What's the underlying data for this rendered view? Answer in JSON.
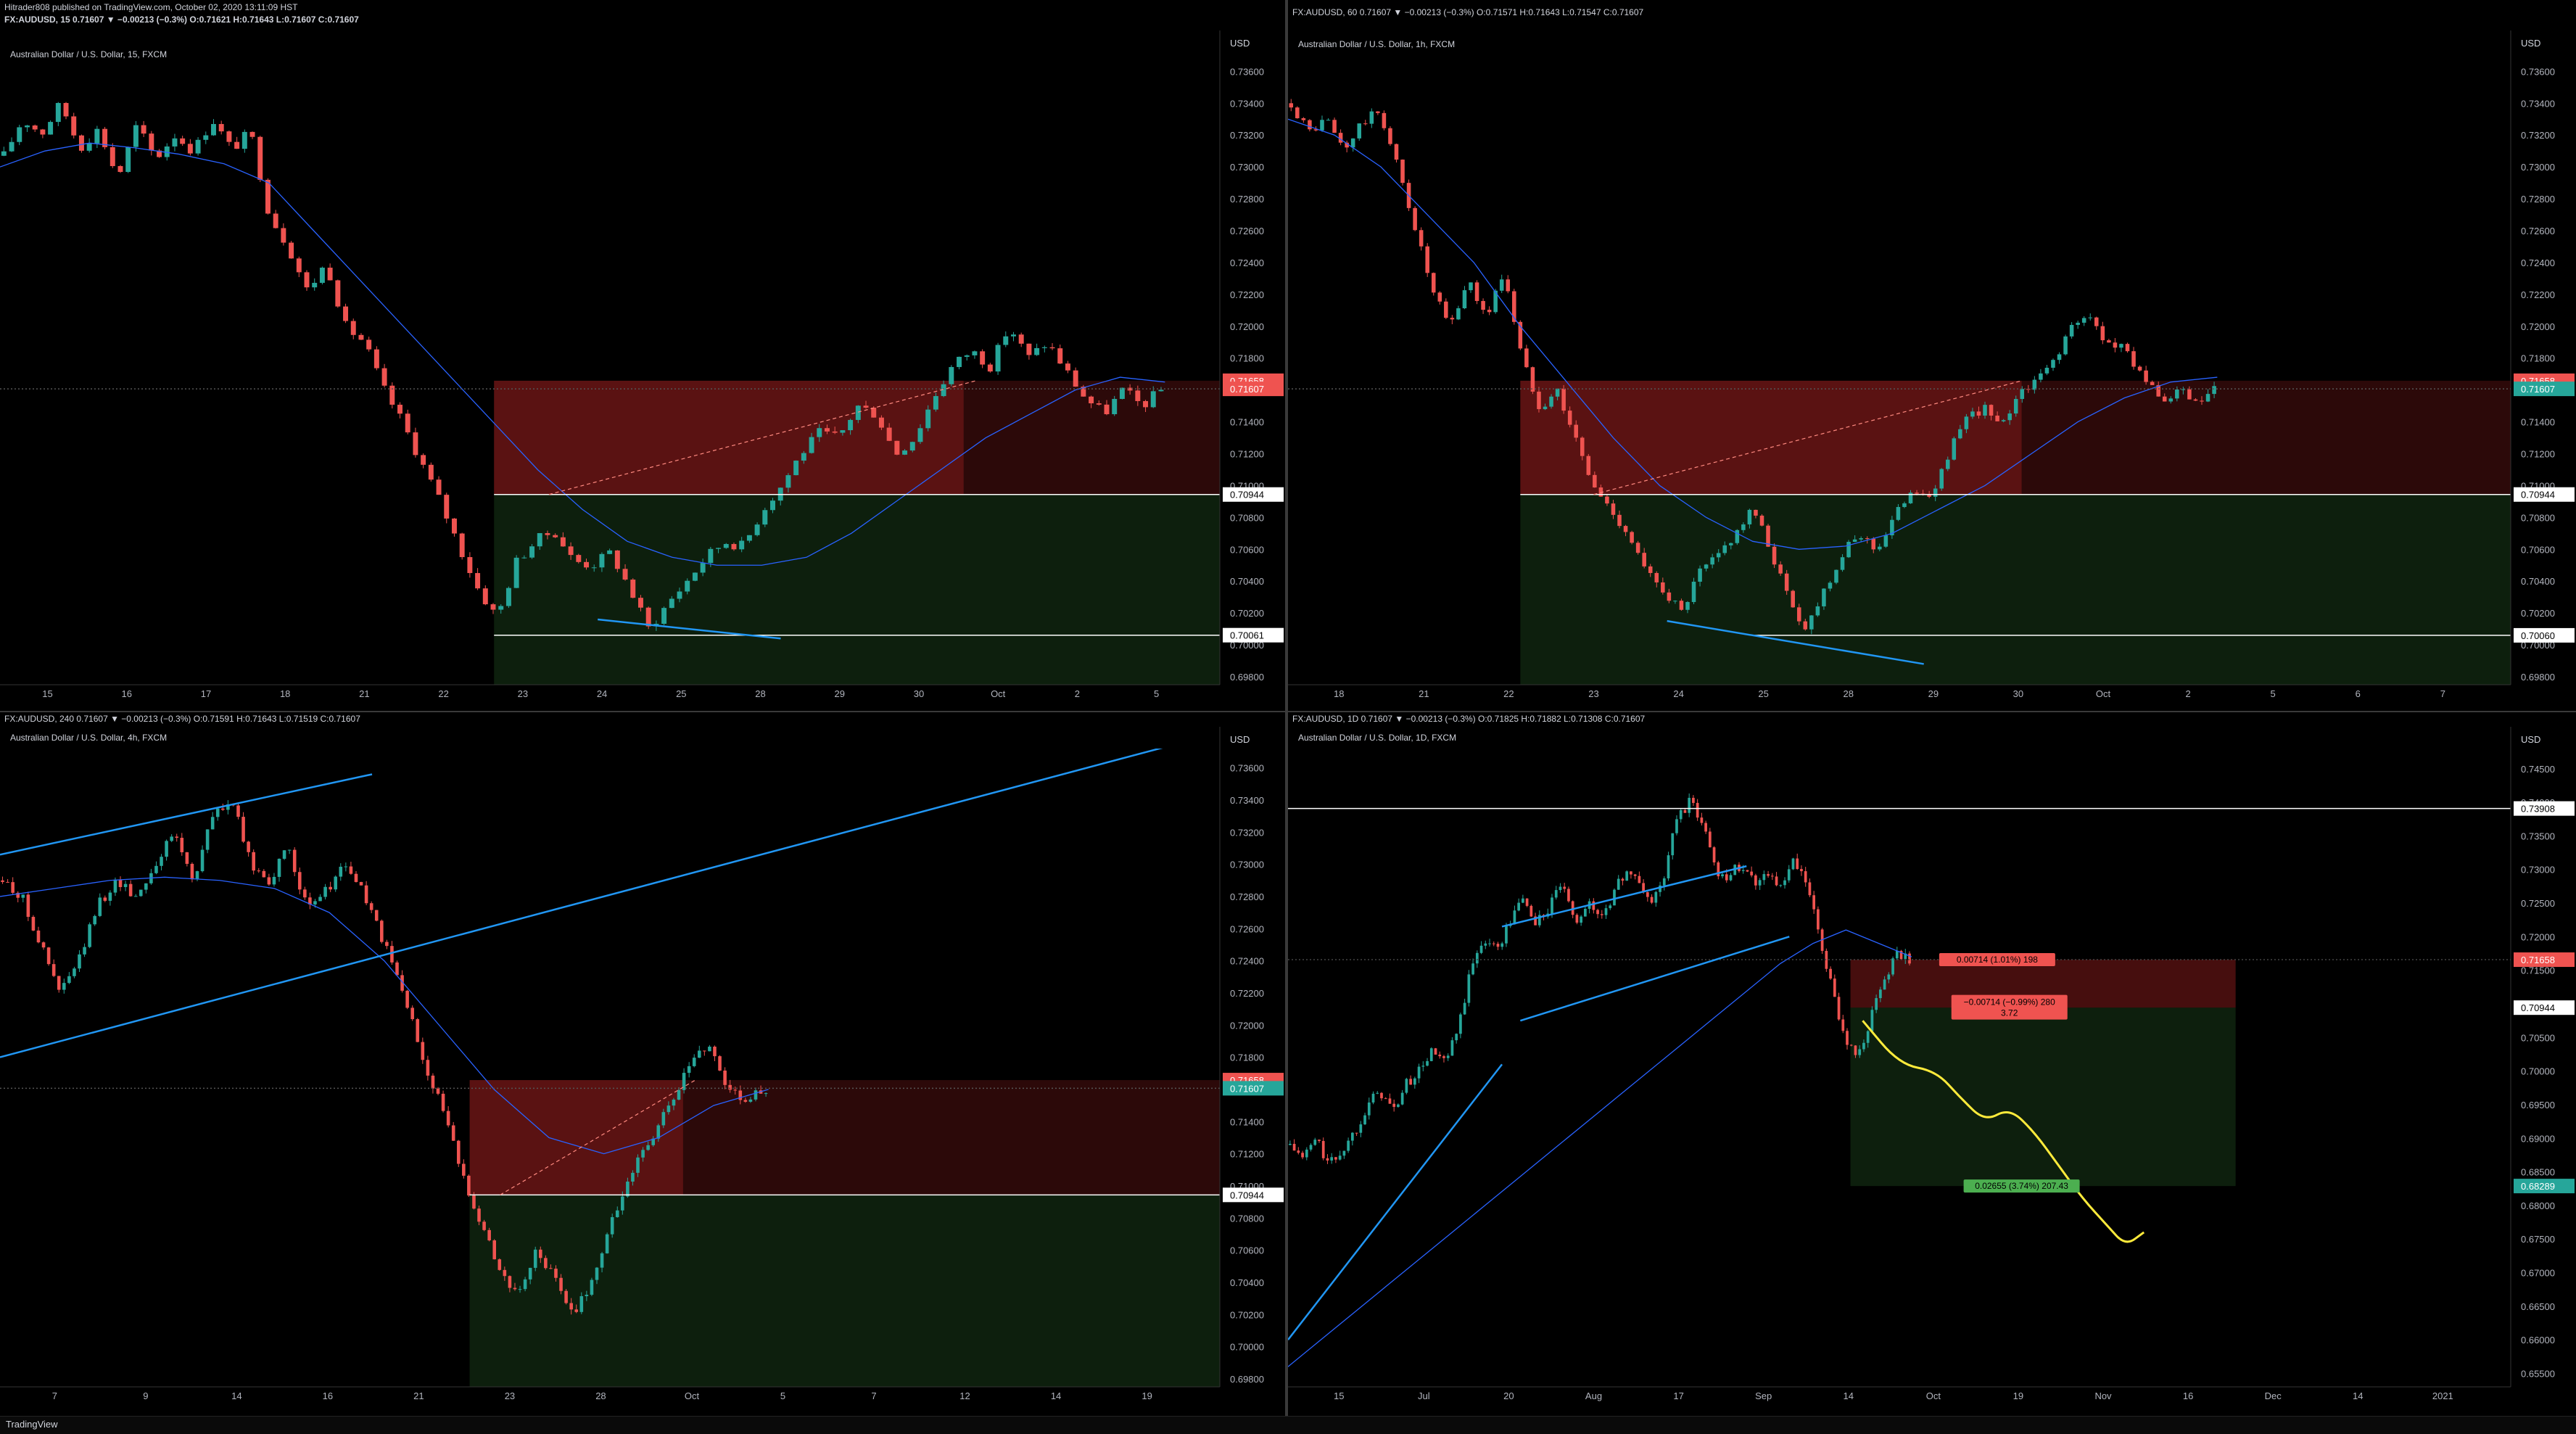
{
  "header": {
    "line1": "Hitrader808 published on TradingView.com, October 02, 2020 13:11:09 HST",
    "line2": "FX:AUDUSD, 15 0.71607 ▼ −0.00213 (−0.3%) O:0.71621 H:0.71643 L:0.71607 C:0.71607"
  },
  "footer": {
    "brand": "TradingView"
  },
  "colors": {
    "up": "#26a69a",
    "down": "#ef5350",
    "trend": "#2196f3",
    "ma": "#2962ff",
    "path": "#ffeb3b"
  },
  "panels": [
    {
      "symbol_line": "FX:AUDUSD, 60 0.71607 ▼ −0.00213 (−0.3%) O:0.71571 H:0.71643 L:0.71547 C:0.71607",
      "name": "Australian Dollar / U.S. Dollar, 15, FXCM",
      "currency": "USD",
      "symbol_visible": false,
      "chart_data": {
        "type": "candlestick",
        "x_ticks": [
          "15",
          "16",
          "17",
          "18",
          "21",
          "22",
          "23",
          "24",
          "25",
          "28",
          "29",
          "30",
          "Oct",
          "2",
          "5"
        ],
        "y_ticks": [
          "0.73600",
          "0.73400",
          "0.73200",
          "0.73000",
          "0.72800",
          "0.72600",
          "0.72400",
          "0.72200",
          "0.72000",
          "0.71800",
          "0.71600",
          "0.71400",
          "0.71200",
          "0.71000",
          "0.70800",
          "0.70600",
          "0.70400",
          "0.70200",
          "0.70000",
          "0.69800"
        ],
        "ylim": [
          0.6975,
          0.7372
        ],
        "price_labels": [
          {
            "value": 0.71658,
            "text": "0.71658",
            "color": "#ef5350"
          },
          {
            "value": 0.71607,
            "text": "0.71607",
            "color": "#ef5350"
          },
          {
            "value": 0.70944,
            "text": "0.70944",
            "color": "#ffffff"
          },
          {
            "value": 0.70061,
            "text": "0.70061",
            "color": "#ffffff"
          }
        ],
        "series": [
          {
            "name": "AUDUSD",
            "path": [
              0.7307,
              0.733,
              0.7321,
              0.734,
              0.7312,
              0.7324,
              0.7293,
              0.7326,
              0.7305,
              0.732,
              0.731,
              0.733,
              0.7311,
              0.7322,
              0.727,
              0.725,
              0.7222,
              0.724,
              0.72,
              0.719,
              0.7161,
              0.714,
              0.7115,
              0.709,
              0.7062,
              0.7035,
              0.7017,
              0.7052,
              0.7065,
              0.7072,
              0.7053,
              0.705,
              0.7058,
              0.7035,
              0.701,
              0.7026,
              0.704,
              0.7055,
              0.7065,
              0.7062,
              0.7085,
              0.71,
              0.712,
              0.7133,
              0.713,
              0.715,
              0.7145,
              0.712,
              0.713,
              0.7155,
              0.7175,
              0.7185,
              0.7175,
              0.72,
              0.718,
              0.719,
              0.7172,
              0.7155,
              0.7145,
              0.716,
              0.715,
              0.716
            ]
          }
        ],
        "ma": [
          0.73,
          0.731,
          0.7315,
          0.7312,
          0.7308,
          0.7302,
          0.729,
          0.726,
          0.723,
          0.72,
          0.717,
          0.714,
          0.711,
          0.7085,
          0.7065,
          0.7055,
          0.705,
          0.705,
          0.7055,
          0.707,
          0.709,
          0.711,
          0.713,
          0.7145,
          0.716,
          0.7168,
          0.7165
        ],
        "zones": [
          {
            "type": "loss",
            "x0": 0.405,
            "x1": 1.0,
            "y0": 0.71658,
            "y1": 0.70944,
            "split": 0.79
          },
          {
            "type": "profit",
            "x0": 0.405,
            "x1": 1.0,
            "y0": 0.70944,
            "y1": 0.6975
          }
        ],
        "hlines": [
          {
            "y": 0.71607,
            "color": "#555555",
            "dash": "2,3"
          },
          {
            "y": 0.70944,
            "color": "#ffffff",
            "x0": 0.405
          },
          {
            "y": 0.70061,
            "color": "#ffffff",
            "x0": 0.405
          }
        ],
        "trendlines": [
          {
            "x0": 0.49,
            "y0": 0.7016,
            "x1": 0.64,
            "y1": 0.7004,
            "color": "#2196f3",
            "width": 2.5
          },
          {
            "x0": 0.45,
            "y0": 0.70944,
            "x1": 0.8,
            "y1": 0.71658,
            "color": "#ff8a80",
            "width": 1.2,
            "dash": "5,4"
          }
        ]
      }
    },
    {
      "symbol_line": "FX:AUDUSD, 60 0.71607 ▼ −0.00213 (−0.3%) O:0.71571 H:0.71643 L:0.71547 C:0.71607",
      "name": "Australian Dollar / U.S. Dollar, 1h, FXCM",
      "currency": "USD",
      "symbol_visible": true,
      "chart_data": {
        "type": "candlestick",
        "x_ticks": [
          "18",
          "21",
          "22",
          "23",
          "24",
          "25",
          "28",
          "29",
          "30",
          "Oct",
          "2",
          "5",
          "6",
          "7"
        ],
        "y_ticks": [
          "0.73600",
          "0.73400",
          "0.73200",
          "0.73000",
          "0.72800",
          "0.72600",
          "0.72400",
          "0.72200",
          "0.72000",
          "0.71800",
          "0.71600",
          "0.71400",
          "0.71200",
          "0.71000",
          "0.70800",
          "0.70600",
          "0.70400",
          "0.70200",
          "0.70000",
          "0.69800"
        ],
        "ylim": [
          0.6975,
          0.7372
        ],
        "price_labels": [
          {
            "value": 0.71658,
            "text": "0.71658",
            "color": "#ef5350"
          },
          {
            "value": 0.71607,
            "text": "0.71607",
            "color": "#26a69a"
          },
          {
            "value": 0.70944,
            "text": "0.70944",
            "color": "#ffffff"
          },
          {
            "value": 0.7006,
            "text": "0.70060",
            "color": "#ffffff"
          }
        ],
        "series": [
          {
            "name": "AUDUSD",
            "path": [
              0.734,
              0.7322,
              0.733,
              0.731,
              0.7328,
              0.7335,
              0.73,
              0.7262,
              0.722,
              0.72,
              0.723,
              0.7205,
              0.7235,
              0.718,
              0.715,
              0.716,
              0.713,
              0.71,
              0.7085,
              0.707,
              0.7045,
              0.7035,
              0.702,
              0.7045,
              0.7055,
              0.707,
              0.7085,
              0.706,
              0.703,
              0.701,
              0.7035,
              0.7055,
              0.707,
              0.706,
              0.708,
              0.71,
              0.709,
              0.712,
              0.714,
              0.715,
              0.7135,
              0.716,
              0.7165,
              0.718,
              0.72,
              0.7205,
              0.719,
              0.7185,
              0.717,
              0.715,
              0.716,
              0.715,
              0.716
            ]
          }
        ],
        "ma": [
          0.733,
          0.732,
          0.73,
          0.727,
          0.724,
          0.72,
          0.7165,
          0.713,
          0.71,
          0.708,
          0.7065,
          0.706,
          0.7062,
          0.707,
          0.7085,
          0.71,
          0.712,
          0.714,
          0.7155,
          0.7165,
          0.7168
        ],
        "zones": [
          {
            "type": "loss",
            "x0": 0.19,
            "x1": 1.0,
            "y0": 0.71658,
            "y1": 0.70944,
            "split": 0.6
          },
          {
            "type": "profit",
            "x0": 0.19,
            "x1": 1.0,
            "y0": 0.70944,
            "y1": 0.6975
          }
        ],
        "hlines": [
          {
            "y": 0.71607,
            "color": "#555555",
            "dash": "2,3"
          },
          {
            "y": 0.70944,
            "color": "#ffffff",
            "x0": 0.19
          },
          {
            "y": 0.7006,
            "color": "#ffffff",
            "x0": 0.38
          }
        ],
        "trendlines": [
          {
            "x0": 0.31,
            "y0": 0.7015,
            "x1": 0.52,
            "y1": 0.6988,
            "color": "#2196f3",
            "width": 2.5
          },
          {
            "x0": 0.25,
            "y0": 0.70944,
            "x1": 0.6,
            "y1": 0.71658,
            "color": "#ff8a80",
            "width": 1.2,
            "dash": "5,4"
          }
        ]
      }
    },
    {
      "symbol_line": "FX:AUDUSD, 240 0.71607 ▼ −0.00213 (−0.3%) O:0.71591 H:0.71643 L:0.71519 C:0.71607",
      "name": "Australian Dollar / U.S. Dollar, 4h, FXCM",
      "currency": "USD",
      "symbol_visible": true,
      "chart_data": {
        "type": "candlestick",
        "x_ticks": [
          "7",
          "9",
          "14",
          "16",
          "21",
          "23",
          "28",
          "Oct",
          "5",
          "7",
          "12",
          "14",
          "19"
        ],
        "y_ticks": [
          "0.73600",
          "0.73400",
          "0.73200",
          "0.73000",
          "0.72800",
          "0.72600",
          "0.72400",
          "0.72200",
          "0.72000",
          "0.71800",
          "0.71600",
          "0.71400",
          "0.71200",
          "0.71000",
          "0.70800",
          "0.70600",
          "0.70400",
          "0.70200",
          "0.70000",
          "0.69800"
        ],
        "ylim": [
          0.6975,
          0.7372
        ],
        "price_labels": [
          {
            "value": 0.71658,
            "text": "0.71658",
            "color": "#ef5350"
          },
          {
            "value": 0.71607,
            "text": "0.71607",
            "color": "#26a69a"
          },
          {
            "value": 0.70944,
            "text": "0.70944",
            "color": "#ffffff"
          }
        ],
        "series": [
          {
            "name": "AUDUSD",
            "path": [
              0.729,
              0.728,
              0.725,
              0.722,
              0.724,
              0.7275,
              0.729,
              0.728,
              0.73,
              0.732,
              0.729,
              0.733,
              0.734,
              0.73,
              0.729,
              0.731,
              0.727,
              0.7285,
              0.73,
              0.728,
              0.725,
              0.722,
              0.718,
              0.715,
              0.711,
              0.708,
              0.705,
              0.703,
              0.706,
              0.704,
              0.702,
              0.7045,
              0.708,
              0.711,
              0.713,
              0.715,
              0.7175,
              0.719,
              0.716,
              0.7155,
              0.716
            ]
          }
        ],
        "ma": [
          0.728,
          0.7285,
          0.729,
          0.7292,
          0.729,
          0.7285,
          0.727,
          0.724,
          0.72,
          0.716,
          0.713,
          0.712,
          0.713,
          0.715,
          0.716
        ],
        "zones": [
          {
            "type": "loss",
            "x0": 0.385,
            "x1": 1.0,
            "y0": 0.71658,
            "y1": 0.70944,
            "split": 0.56
          },
          {
            "type": "profit",
            "x0": 0.385,
            "x1": 1.0,
            "y0": 0.70944,
            "y1": 0.6975
          }
        ],
        "hlines": [
          {
            "y": 0.71607,
            "color": "#555555",
            "dash": "2,3"
          },
          {
            "y": 0.70944,
            "color": "#ffffff",
            "x0": 0.385
          }
        ],
        "trendlines": [
          {
            "x0": 0.0,
            "y0": 0.7306,
            "x1": 0.305,
            "y1": 0.7356,
            "color": "#2196f3",
            "width": 2.5
          },
          {
            "x0": 0.0,
            "y0": 0.718,
            "x1": 0.99,
            "y1": 0.738,
            "color": "#2196f3",
            "width": 2.5
          },
          {
            "x0": 0.41,
            "y0": 0.70944,
            "x1": 0.57,
            "y1": 0.71658,
            "color": "#ff8a80",
            "width": 1.2,
            "dash": "5,4"
          }
        ]
      }
    },
    {
      "symbol_line": "FX:AUDUSD, 1D 0.71607 ▼ −0.00213 (−0.3%) O:0.71825 H:0.71882 L:0.71308 C:0.71607",
      "name": "Australian Dollar / U.S. Dollar, 1D, FXCM",
      "currency": "USD",
      "symbol_visible": true,
      "chart_data": {
        "type": "candlestick",
        "x_ticks": [
          "15",
          "Jul",
          "20",
          "Aug",
          "17",
          "Sep",
          "14",
          "Oct",
          "19",
          "Nov",
          "16",
          "Dec",
          "14",
          "2021"
        ],
        "y_ticks": [
          "0.74500",
          "0.74000",
          "0.73500",
          "0.73000",
          "0.72500",
          "0.72000",
          "0.71500",
          "0.71000",
          "0.70500",
          "0.70000",
          "0.69500",
          "0.69000",
          "0.68500",
          "0.68000",
          "0.67500",
          "0.67000",
          "0.66500",
          "0.66000",
          "0.65500"
        ],
        "ylim": [
          0.653,
          0.748
        ],
        "price_labels": [
          {
            "value": 0.73908,
            "text": "0.73908",
            "color": "#ffffff"
          },
          {
            "value": 0.71658,
            "text": "0.71658",
            "color": "#ef5350"
          },
          {
            "value": 0.70944,
            "text": "0.70944",
            "color": "#ffffff"
          },
          {
            "value": 0.68289,
            "text": "0.68289",
            "color": "#26a69a"
          }
        ],
        "series": [
          {
            "name": "AUDUSD",
            "path": [
              0.689,
              0.687,
              0.69,
              0.686,
              0.688,
              0.691,
              0.695,
              0.697,
              0.694,
              0.698,
              0.7,
              0.703,
              0.701,
              0.706,
              0.715,
              0.72,
              0.718,
              0.722,
              0.726,
              0.722,
              0.724,
              0.728,
              0.722,
              0.725,
              0.723,
              0.726,
              0.73,
              0.728,
              0.725,
              0.729,
              0.738,
              0.74,
              0.737,
              0.73,
              0.729,
              0.731,
              0.728,
              0.73,
              0.727,
              0.731,
              0.728,
              0.72,
              0.712,
              0.705,
              0.702,
              0.708,
              0.713,
              0.718,
              0.716
            ]
          }
        ],
        "ma": [
          0.656,
          0.66,
          0.664,
          0.668,
          0.672,
          0.676,
          0.68,
          0.684,
          0.688,
          0.692,
          0.696,
          0.7,
          0.704,
          0.708,
          0.712,
          0.716,
          0.719,
          0.721,
          0.719,
          0.717
        ],
        "zones": [
          {
            "type": "loss",
            "x0": 0.46,
            "x1": 0.775,
            "y0": 0.71658,
            "y1": 0.70944
          },
          {
            "type": "profit",
            "x0": 0.46,
            "x1": 0.775,
            "y0": 0.70944,
            "y1": 0.68289
          }
        ],
        "hlines": [
          {
            "y": 0.73908,
            "color": "#ffffff"
          },
          {
            "y": 0.71658,
            "color": "#444444",
            "dash": "2,3"
          }
        ],
        "trendlines": [
          {
            "x0": 0.0,
            "y0": 0.66,
            "x1": 0.175,
            "y1": 0.701,
            "color": "#2196f3",
            "width": 2.5
          },
          {
            "x0": 0.175,
            "y0": 0.7215,
            "x1": 0.375,
            "y1": 0.7305,
            "color": "#2196f3",
            "width": 2.5
          },
          {
            "x0": 0.19,
            "y0": 0.7075,
            "x1": 0.41,
            "y1": 0.72,
            "color": "#2196f3",
            "width": 2.5
          }
        ],
        "projection": {
          "color": "#ffeb3b",
          "points": [
            [
              0.47,
              0.7075
            ],
            [
              0.5,
              0.701
            ],
            [
              0.53,
              0.7
            ],
            [
              0.55,
              0.696
            ],
            [
              0.57,
              0.6925
            ],
            [
              0.59,
              0.6945
            ],
            [
              0.61,
              0.691
            ],
            [
              0.63,
              0.686
            ],
            [
              0.65,
              0.681
            ],
            [
              0.67,
              0.677
            ],
            [
              0.685,
              0.674
            ],
            [
              0.7,
              0.676
            ]
          ]
        },
        "boxes": [
          {
            "x": 0.58,
            "y": 0.71658,
            "text": "0.00714 (1.01%) 198",
            "bg": "#ef5350"
          },
          {
            "x": 0.59,
            "y": 0.7095,
            "text": "−0.00714 (−0.99%) 280",
            "text2": "3.72",
            "bg": "#ef5350"
          },
          {
            "x": 0.6,
            "y": 0.68289,
            "text": "0.02655 (3.74%) 207.43",
            "bg": "#4caf50"
          }
        ]
      }
    }
  ]
}
